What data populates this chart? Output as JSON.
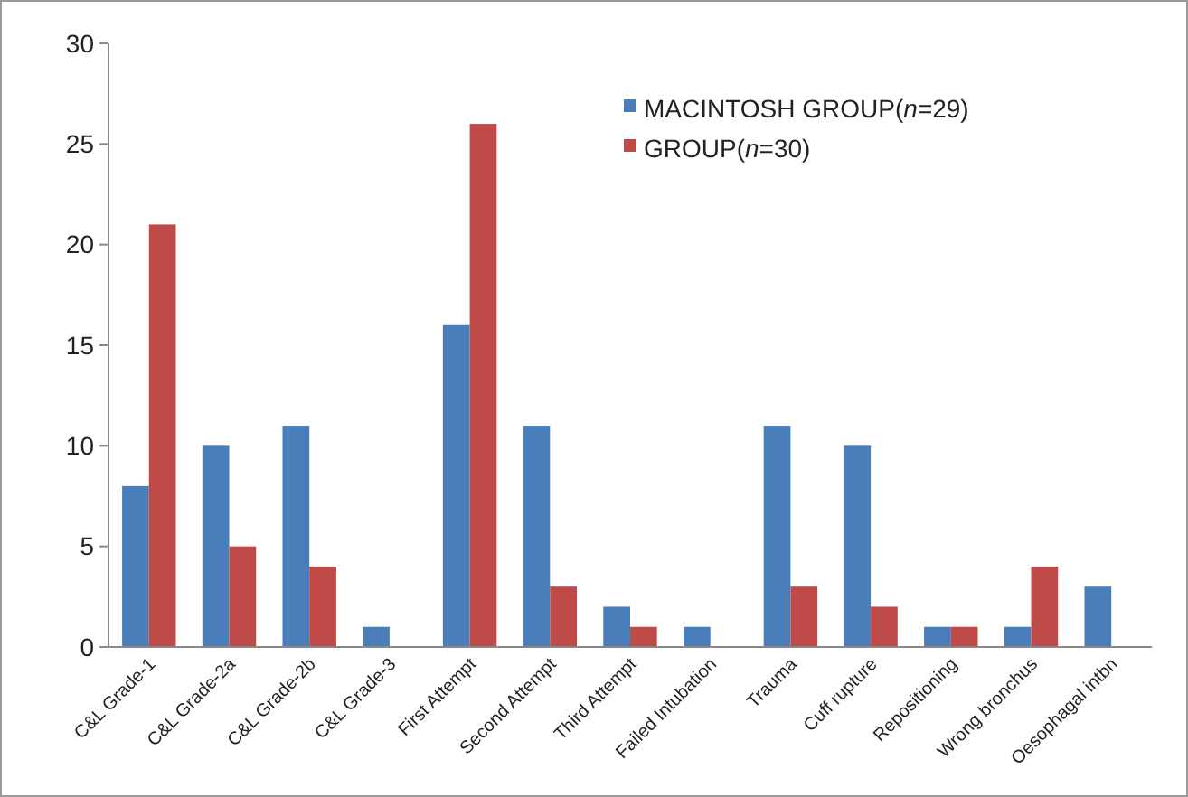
{
  "chart_data": {
    "type": "bar",
    "categories": [
      "C&L Grade-1",
      "C&L Grade-2a",
      "C&L Grade-2b",
      "C&L Grade-3",
      "First Attempt",
      "Second Attempt",
      "Third Attempt",
      "Failed Intubation",
      "Trauma",
      "Cuff rupture",
      "Repositioning",
      "Wrong bronchus",
      "Oesophagal intbn"
    ],
    "series": [
      {
        "name": "MACINTOSH GROUP(n=29)",
        "color": "#4a7ebb",
        "values": [
          8,
          10,
          11,
          1,
          16,
          11,
          2,
          1,
          11,
          10,
          1,
          1,
          3
        ]
      },
      {
        "name": "GROUP(n=30)",
        "color": "#be4b48",
        "values": [
          21,
          5,
          4,
          0,
          26,
          3,
          1,
          0,
          3,
          2,
          1,
          4,
          0
        ]
      }
    ],
    "ylim": [
      0,
      30
    ],
    "yticks": [
      0,
      5,
      10,
      15,
      20,
      25,
      30
    ],
    "grid": false,
    "legend": "top right"
  }
}
